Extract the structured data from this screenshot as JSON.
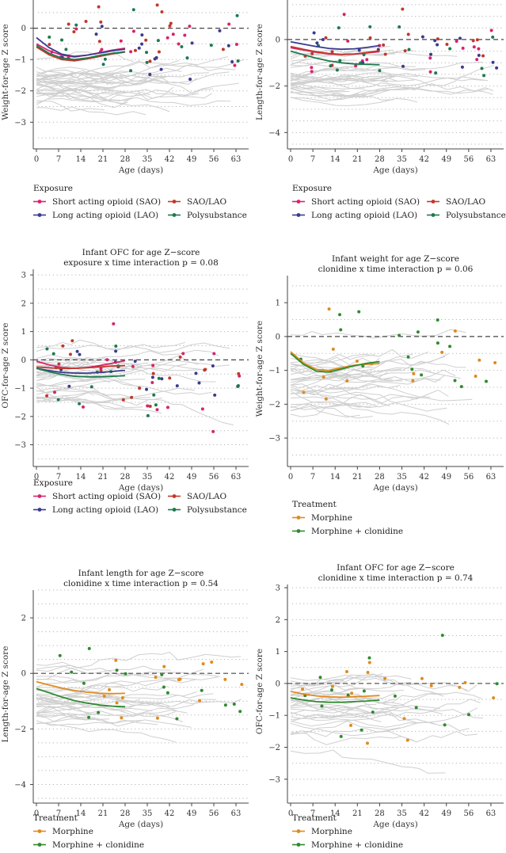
{
  "colors": {
    "grid": "#b5b5b5",
    "zero_line": "#444444",
    "axis": "#444444",
    "trajectory": "#cfcfcf",
    "sao": "#d6246e",
    "lao": "#3b3b8f",
    "sao_lao": "#c0392b",
    "poly": "#1e7a4e",
    "morphine": "#e08a1e",
    "morph_clon": "#2f8a2f"
  },
  "legends": {
    "exposure": {
      "title": "Exposure",
      "items": [
        "Short acting opioid (SAO)",
        "SAO/LAO",
        "Long acting opioid (LAO)",
        "Polysubstance"
      ]
    },
    "treatment": {
      "title": "Treatment",
      "items": [
        "Morphine",
        "Morphine + clonidine"
      ]
    }
  },
  "chart_data": [
    {
      "id": "p1",
      "type": "line",
      "title": "",
      "subtitle": "",
      "xlabel": "Age (days)",
      "ylabel": "Weight-for-age Z score",
      "xticks": [
        0,
        7,
        14,
        21,
        28,
        35,
        42,
        49,
        56,
        63
      ],
      "xlim": [
        -1,
        67
      ],
      "yticks": [
        -3,
        -2,
        -1,
        0
      ],
      "ylim": [
        -3.7,
        0.9
      ],
      "grid_step": 0.5,
      "legend": "exposure",
      "series": [
        {
          "name": "Short acting opioid (SAO)",
          "x": [
            0,
            4,
            8,
            12,
            16,
            20,
            24,
            28
          ],
          "y": [
            -0.5,
            -0.72,
            -0.86,
            -0.92,
            -0.86,
            -0.78,
            -0.7,
            -0.64
          ]
        },
        {
          "name": "Long acting opioid (LAO)",
          "x": [
            0,
            4,
            8,
            12,
            16,
            20,
            24,
            28
          ],
          "y": [
            -0.3,
            -0.62,
            -0.83,
            -0.9,
            -0.86,
            -0.79,
            -0.72,
            -0.67
          ]
        },
        {
          "name": "SAO/LAO",
          "x": [
            0,
            4,
            8,
            12,
            16,
            20,
            24,
            28
          ],
          "y": [
            -0.6,
            -0.85,
            -1.0,
            -1.04,
            -0.98,
            -0.9,
            -0.82,
            -0.76
          ]
        },
        {
          "name": "Polysubstance",
          "x": [
            0,
            4,
            8,
            12,
            16,
            20,
            24,
            28
          ],
          "y": [
            -0.55,
            -0.8,
            -0.95,
            -1.0,
            -0.95,
            -0.87,
            -0.8,
            -0.75
          ]
        }
      ]
    },
    {
      "id": "p2",
      "type": "line",
      "title": "",
      "subtitle": "",
      "xlabel": "Age (days)",
      "ylabel": "Length-for-age Z score",
      "xticks": [
        0,
        7,
        14,
        21,
        28,
        35,
        42,
        49,
        56,
        63
      ],
      "xlim": [
        -1,
        67
      ],
      "yticks": [
        -4,
        -2,
        0
      ],
      "ylim": [
        -4.5,
        1.7
      ],
      "grid_step": 0.5,
      "legend": "exposure",
      "series": [
        {
          "name": "Short acting opioid (SAO)",
          "x": [
            0,
            4,
            8,
            12,
            16,
            20,
            24,
            28
          ],
          "y": [
            -0.35,
            -0.45,
            -0.55,
            -0.62,
            -0.65,
            -0.63,
            -0.58,
            -0.52
          ]
        },
        {
          "name": "Long acting opioid (LAO)",
          "x": [
            0,
            4,
            8,
            12,
            16,
            20,
            24,
            28
          ],
          "y": [
            -0.1,
            -0.2,
            -0.3,
            -0.38,
            -0.42,
            -0.4,
            -0.34,
            -0.26
          ]
        },
        {
          "name": "SAO/LAO",
          "x": [
            0,
            4,
            8,
            12,
            16,
            20,
            24,
            28
          ],
          "y": [
            -0.3,
            -0.42,
            -0.52,
            -0.6,
            -0.64,
            -0.62,
            -0.56,
            -0.48
          ]
        },
        {
          "name": "Polysubstance",
          "x": [
            0,
            4,
            8,
            12,
            16,
            20,
            24,
            28
          ],
          "y": [
            -0.5,
            -0.65,
            -0.8,
            -0.92,
            -1.0,
            -1.05,
            -1.07,
            -1.08
          ]
        }
      ]
    },
    {
      "id": "p3",
      "type": "line",
      "title": "Infant OFC for age Z−score",
      "subtitle": "exposure x time interaction p = 0.08",
      "xlabel": "Age (days)",
      "ylabel": "OFC-for-age Z score",
      "xticks": [
        0,
        7,
        14,
        21,
        28,
        35,
        42,
        49,
        56,
        63
      ],
      "xlim": [
        -1,
        67
      ],
      "yticks": [
        -3,
        -2,
        -1,
        0,
        1,
        2,
        3
      ],
      "ylim": [
        -3.6,
        3.2
      ],
      "grid_step": 0.5,
      "legend": "exposure",
      "series": [
        {
          "name": "Short acting opioid (SAO)",
          "x": [
            0,
            4,
            8,
            12,
            16,
            20,
            24,
            28
          ],
          "y": [
            -0.05,
            -0.18,
            -0.27,
            -0.3,
            -0.27,
            -0.2,
            -0.12,
            -0.03
          ]
        },
        {
          "name": "Long acting opioid (LAO)",
          "x": [
            0,
            4,
            8,
            12,
            16,
            20,
            24,
            28
          ],
          "y": [
            -0.3,
            -0.38,
            -0.44,
            -0.47,
            -0.47,
            -0.45,
            -0.41,
            -0.37
          ]
        },
        {
          "name": "SAO/LAO",
          "x": [
            0,
            4,
            8,
            12,
            16,
            20,
            24,
            28
          ],
          "y": [
            -0.25,
            -0.28,
            -0.3,
            -0.3,
            -0.28,
            -0.25,
            -0.22,
            -0.2
          ]
        },
        {
          "name": "Polysubstance",
          "x": [
            0,
            4,
            8,
            12,
            16,
            20,
            24,
            28
          ],
          "y": [
            -0.3,
            -0.42,
            -0.52,
            -0.58,
            -0.6,
            -0.6,
            -0.58,
            -0.56
          ]
        }
      ]
    },
    {
      "id": "p4",
      "type": "line",
      "title": "Infant weight for age Z−score",
      "subtitle": "clonidine x time interaction p = 0.06",
      "xlabel": "Age (days)",
      "ylabel": "Weight-for-age Z score",
      "xticks": [
        0,
        7,
        14,
        21,
        28,
        35,
        42,
        49,
        56,
        63
      ],
      "xlim": [
        -1,
        67
      ],
      "yticks": [
        -3,
        -2,
        -1,
        0,
        1
      ],
      "ylim": [
        -3.7,
        1.8
      ],
      "grid_step": 0.5,
      "legend": "treatment",
      "series": [
        {
          "name": "Morphine",
          "x": [
            0,
            4,
            8,
            12,
            16,
            20,
            24,
            28
          ],
          "y": [
            -0.45,
            -0.78,
            -0.97,
            -1.0,
            -0.92,
            -0.85,
            -0.82,
            -0.8
          ]
        },
        {
          "name": "Morphine + clonidine",
          "x": [
            0,
            4,
            8,
            12,
            16,
            20,
            24,
            28
          ],
          "y": [
            -0.5,
            -0.82,
            -1.02,
            -1.05,
            -0.96,
            -0.86,
            -0.79,
            -0.74
          ]
        }
      ]
    },
    {
      "id": "p5",
      "type": "line",
      "title": "Infant length for age Z−score",
      "subtitle": "clonidine x time interaction p = 0.54",
      "xlabel": "Age (days)",
      "ylabel": "Length-for-age Z score",
      "xticks": [
        0,
        7,
        14,
        21,
        28,
        35,
        42,
        49,
        56,
        63
      ],
      "xlim": [
        -1,
        67
      ],
      "yticks": [
        -4,
        -2,
        0,
        2
      ],
      "ylim": [
        -4.5,
        3.0
      ],
      "grid_step": 0.5,
      "legend": "treatment",
      "series": [
        {
          "name": "Morphine",
          "x": [
            0,
            4,
            8,
            12,
            16,
            20,
            24,
            28
          ],
          "y": [
            -0.3,
            -0.42,
            -0.53,
            -0.62,
            -0.68,
            -0.72,
            -0.73,
            -0.72
          ]
        },
        {
          "name": "Morphine + clonidine",
          "x": [
            0,
            4,
            8,
            12,
            16,
            20,
            24,
            28
          ],
          "y": [
            -0.55,
            -0.7,
            -0.85,
            -0.98,
            -1.07,
            -1.14,
            -1.18,
            -1.2
          ]
        }
      ]
    },
    {
      "id": "p6",
      "type": "line",
      "title": "Infant OFC for age Z−score",
      "subtitle": "clonidine x time interaction p = 0.74",
      "xlabel": "Age (days)",
      "ylabel": "OFC-for-age Z score",
      "xticks": [
        0,
        7,
        14,
        21,
        28,
        35,
        42,
        49,
        56,
        63
      ],
      "xlim": [
        -1,
        67
      ],
      "yticks": [
        -3,
        -2,
        -1,
        0,
        1,
        2,
        3
      ],
      "ylim": [
        -3.6,
        3.1
      ],
      "grid_step": 0.5,
      "legend": "treatment",
      "series": [
        {
          "name": "Morphine",
          "x": [
            0,
            4,
            8,
            12,
            16,
            20,
            24,
            28
          ],
          "y": [
            -0.25,
            -0.33,
            -0.39,
            -0.42,
            -0.43,
            -0.42,
            -0.4,
            -0.38
          ]
        },
        {
          "name": "Morphine + clonidine",
          "x": [
            0,
            4,
            8,
            12,
            16,
            20,
            24,
            28
          ],
          "y": [
            -0.45,
            -0.52,
            -0.57,
            -0.59,
            -0.59,
            -0.57,
            -0.55,
            -0.52
          ]
        }
      ]
    }
  ]
}
